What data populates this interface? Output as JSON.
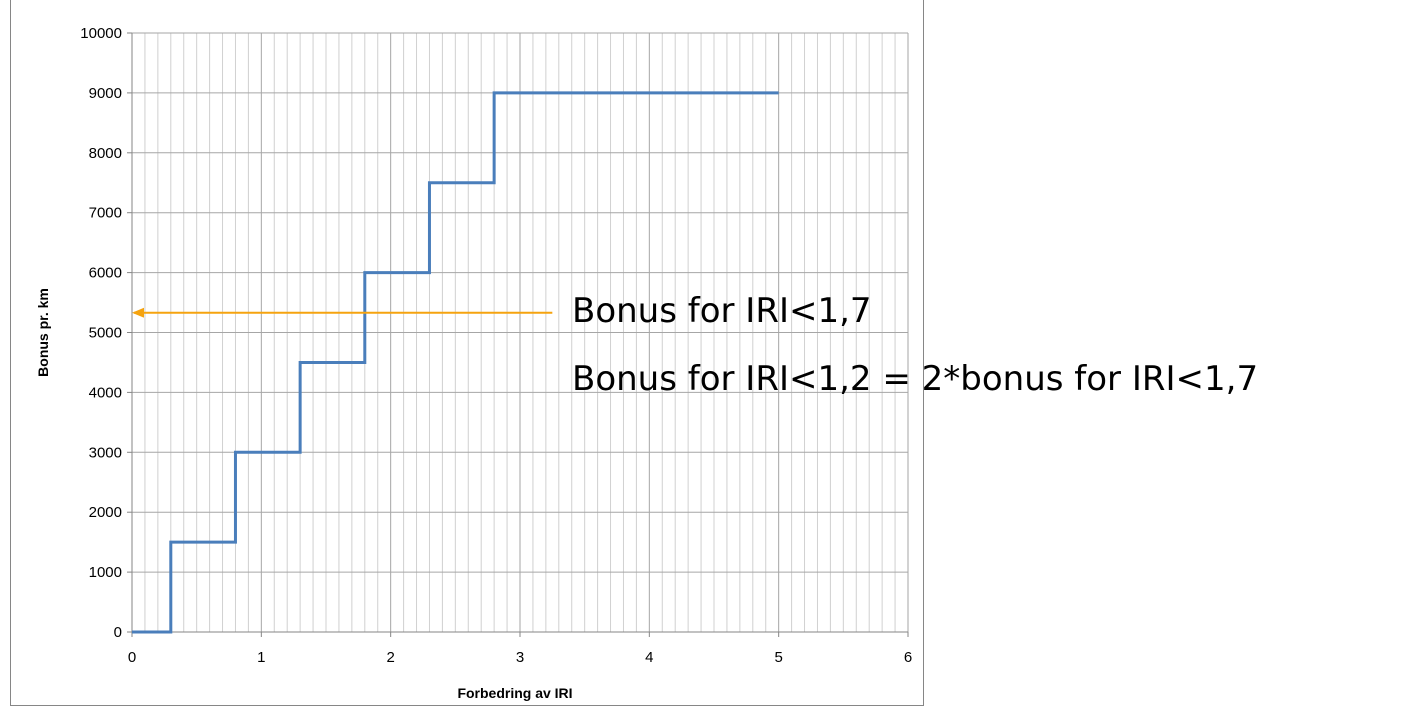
{
  "chart_data": {
    "type": "line",
    "title": "",
    "xlabel": "Forbedring av IRI",
    "ylabel": "Bonus pr. km",
    "xlim": [
      0,
      6
    ],
    "ylim": [
      0,
      10000
    ],
    "x_ticks": [
      0,
      1,
      2,
      3,
      4,
      5,
      6
    ],
    "y_ticks": [
      0,
      1000,
      2000,
      3000,
      4000,
      5000,
      6000,
      7000,
      8000,
      9000,
      10000
    ],
    "x_minor_step": 0.1,
    "grid": true,
    "legend": "none",
    "series": [
      {
        "color": "#4a7ebb",
        "step": true,
        "points": [
          [
            0,
            0
          ],
          [
            0.3,
            0
          ],
          [
            0.3,
            1500
          ],
          [
            0.8,
            1500
          ],
          [
            0.8,
            3000
          ],
          [
            1.3,
            3000
          ],
          [
            1.3,
            4500
          ],
          [
            1.8,
            4500
          ],
          [
            1.8,
            6000
          ],
          [
            2.3,
            6000
          ],
          [
            2.3,
            7500
          ],
          [
            2.8,
            7500
          ],
          [
            2.8,
            9000
          ],
          [
            5,
            9000
          ]
        ]
      }
    ],
    "annotations": [
      {
        "type": "arrow",
        "color": "#f5a30f",
        "from": [
          3.25,
          5330
        ],
        "to": [
          0,
          5330
        ]
      }
    ]
  },
  "annotations_text": {
    "line1": "Bonus for IRI<1,7",
    "line2": "Bonus for IRI<1,2 = 2*bonus for IRI<1,7"
  }
}
